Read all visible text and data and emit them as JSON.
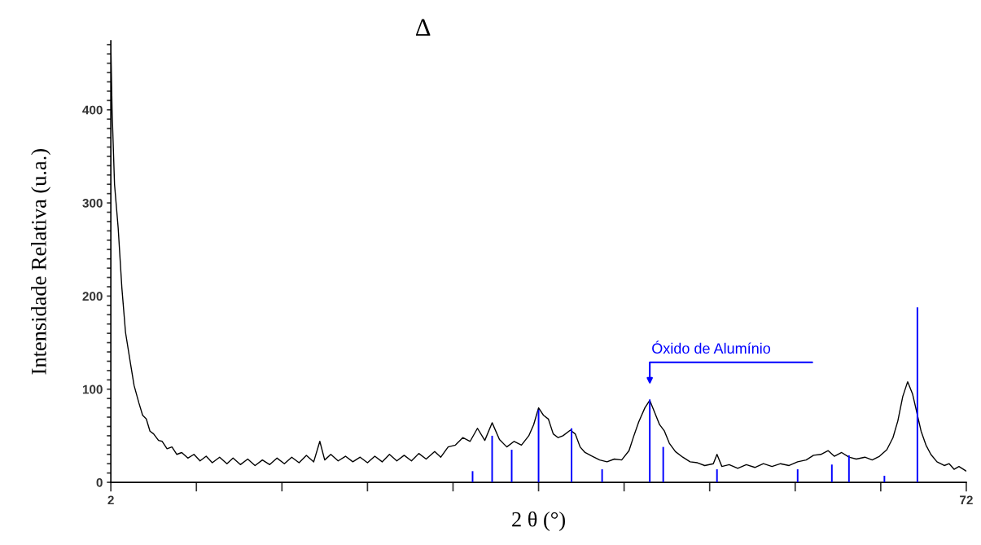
{
  "chart_data": {
    "type": "line",
    "title": "Δ",
    "xlabel": "2 θ (°)",
    "ylabel": "Intensidade Relativa (u.a.)",
    "xlim": [
      2,
      72
    ],
    "xticks": [
      2,
      {
        "value": 9,
        "label": null
      },
      {
        "value": 16,
        "label": null
      },
      {
        "value": 23,
        "label": null
      },
      {
        "value": 30,
        "label": null
      },
      {
        "value": 37,
        "label": null
      },
      {
        "value": 44,
        "label": null
      },
      {
        "value": 51,
        "label": null
      },
      {
        "value": 58,
        "label": null
      },
      {
        "value": 65,
        "label": null
      },
      72
    ],
    "ylim": [
      0,
      474
    ],
    "yticks": [
      0,
      {
        "value": 10,
        "label": null
      },
      {
        "value": 20,
        "label": null
      },
      {
        "value": 30,
        "label": null
      },
      {
        "value": 40,
        "label": null
      },
      {
        "value": 50,
        "label": null
      },
      {
        "value": 60,
        "label": null
      },
      {
        "value": 70,
        "label": null
      },
      {
        "value": 80,
        "label": null
      },
      {
        "value": 90,
        "label": null
      },
      100,
      {
        "value": 110,
        "label": null
      },
      {
        "value": 120,
        "label": null
      },
      {
        "value": 130,
        "label": null
      },
      {
        "value": 140,
        "label": null
      },
      {
        "value": 150,
        "label": null
      },
      {
        "value": 160,
        "label": null
      },
      {
        "value": 170,
        "label": null
      },
      {
        "value": 180,
        "label": null
      },
      {
        "value": 190,
        "label": null
      },
      200,
      {
        "value": 210,
        "label": null
      },
      {
        "value": 220,
        "label": null
      },
      {
        "value": 230,
        "label": null
      },
      {
        "value": 240,
        "label": null
      },
      {
        "value": 250,
        "label": null
      },
      {
        "value": 260,
        "label": null
      },
      {
        "value": 270,
        "label": null
      },
      {
        "value": 280,
        "label": null
      },
      {
        "value": 290,
        "label": null
      },
      300,
      {
        "value": 310,
        "label": null
      },
      {
        "value": 320,
        "label": null
      },
      {
        "value": 330,
        "label": null
      },
      {
        "value": 340,
        "label": null
      },
      {
        "value": 350,
        "label": null
      },
      {
        "value": 360,
        "label": null
      },
      {
        "value": 370,
        "label": null
      },
      {
        "value": 380,
        "label": null
      },
      {
        "value": 390,
        "label": null
      },
      400,
      {
        "value": 410,
        "label": null
      },
      {
        "value": 420,
        "label": null
      },
      {
        "value": 430,
        "label": null
      },
      {
        "value": 440,
        "label": null
      },
      {
        "value": 450,
        "label": null
      },
      {
        "value": 460,
        "label": null
      },
      {
        "value": 470,
        "label": null
      }
    ],
    "grid": false,
    "marker": "none",
    "line_style": "solid",
    "series": [
      {
        "color": "#000000",
        "x": [
          2.0,
          2.1,
          2.3,
          2.6,
          2.9,
          3.2,
          3.6,
          3.9,
          4.3,
          4.6,
          4.9,
          5.2,
          5.5,
          5.9,
          6.2,
          6.6,
          7.0,
          7.4,
          7.8,
          8.3,
          8.8,
          9.3,
          9.8,
          10.3,
          10.9,
          11.5,
          12.0,
          12.6,
          13.2,
          13.8,
          14.4,
          15.0,
          15.6,
          16.2,
          16.8,
          17.4,
          18.0,
          18.6,
          19.1,
          19.5,
          20.0,
          20.6,
          21.2,
          21.8,
          22.4,
          23.0,
          23.6,
          24.2,
          24.8,
          25.4,
          26.0,
          26.6,
          27.2,
          27.8,
          28.5,
          29.0,
          29.6,
          30.2,
          30.8,
          31.4,
          32.0,
          32.6,
          33.2,
          33.8,
          34.4,
          35.0,
          35.6,
          36.2,
          36.6,
          37.0,
          37.4,
          37.8,
          38.2,
          38.6,
          39.0,
          39.6,
          40.0,
          40.4,
          40.8,
          41.4,
          42.0,
          42.6,
          43.2,
          43.8,
          44.4,
          44.8,
          45.2,
          45.7,
          46.1,
          46.5,
          46.9,
          47.3,
          47.7,
          48.2,
          48.8,
          49.4,
          50.0,
          50.6,
          51.3,
          51.6,
          52.0,
          52.6,
          53.3,
          54.0,
          54.7,
          55.4,
          56.1,
          56.8,
          57.5,
          58.2,
          58.9,
          59.5,
          60.1,
          60.7,
          61.2,
          61.8,
          62.4,
          63.0,
          63.7,
          64.3,
          64.9,
          65.5,
          66.0,
          66.4,
          66.8,
          67.2,
          67.6,
          67.9,
          68.3,
          68.7,
          69.1,
          69.6,
          70.2,
          70.6,
          71.0,
          71.4,
          72.0
        ],
        "values": [
          470,
          400,
          320,
          273,
          209,
          161,
          128,
          104,
          85,
          72,
          68,
          55,
          52,
          45,
          44,
          36,
          38,
          30,
          32,
          26,
          30,
          23,
          28,
          21,
          27,
          20,
          26,
          19,
          25,
          18,
          24,
          19,
          26,
          20,
          27,
          21,
          29,
          22,
          44,
          24,
          30,
          23,
          28,
          22,
          27,
          21,
          28,
          22,
          30,
          23,
          29,
          23,
          31,
          25,
          33,
          27,
          38,
          40,
          48,
          44,
          58,
          45,
          64,
          46,
          38,
          44,
          40,
          50,
          62,
          80,
          72,
          68,
          52,
          48,
          50,
          56,
          52,
          38,
          32,
          28,
          24,
          22,
          25,
          24,
          34,
          50,
          65,
          80,
          88,
          75,
          62,
          55,
          42,
          33,
          27,
          22,
          21,
          18,
          20,
          30,
          17,
          19,
          15,
          19,
          16,
          20,
          17,
          20,
          18,
          22,
          24,
          29,
          30,
          34,
          28,
          32,
          27,
          25,
          27,
          24,
          28,
          35,
          48,
          66,
          92,
          108,
          95,
          78,
          55,
          40,
          30,
          22,
          18,
          20,
          14,
          17,
          12
        ]
      },
      {
        "type": "bar",
        "color": "#0000ff",
        "x": [
          31.6,
          33.2,
          34.8,
          37.0,
          39.7,
          42.2,
          46.1,
          47.2,
          51.6,
          58.2,
          61.0,
          62.4,
          65.3,
          68.0
        ],
        "values": [
          12,
          50,
          35,
          78,
          58,
          14,
          89,
          38,
          14,
          14,
          19,
          29,
          7,
          188
        ]
      }
    ],
    "annotations": [
      "Óxido de Alumínio"
    ]
  }
}
